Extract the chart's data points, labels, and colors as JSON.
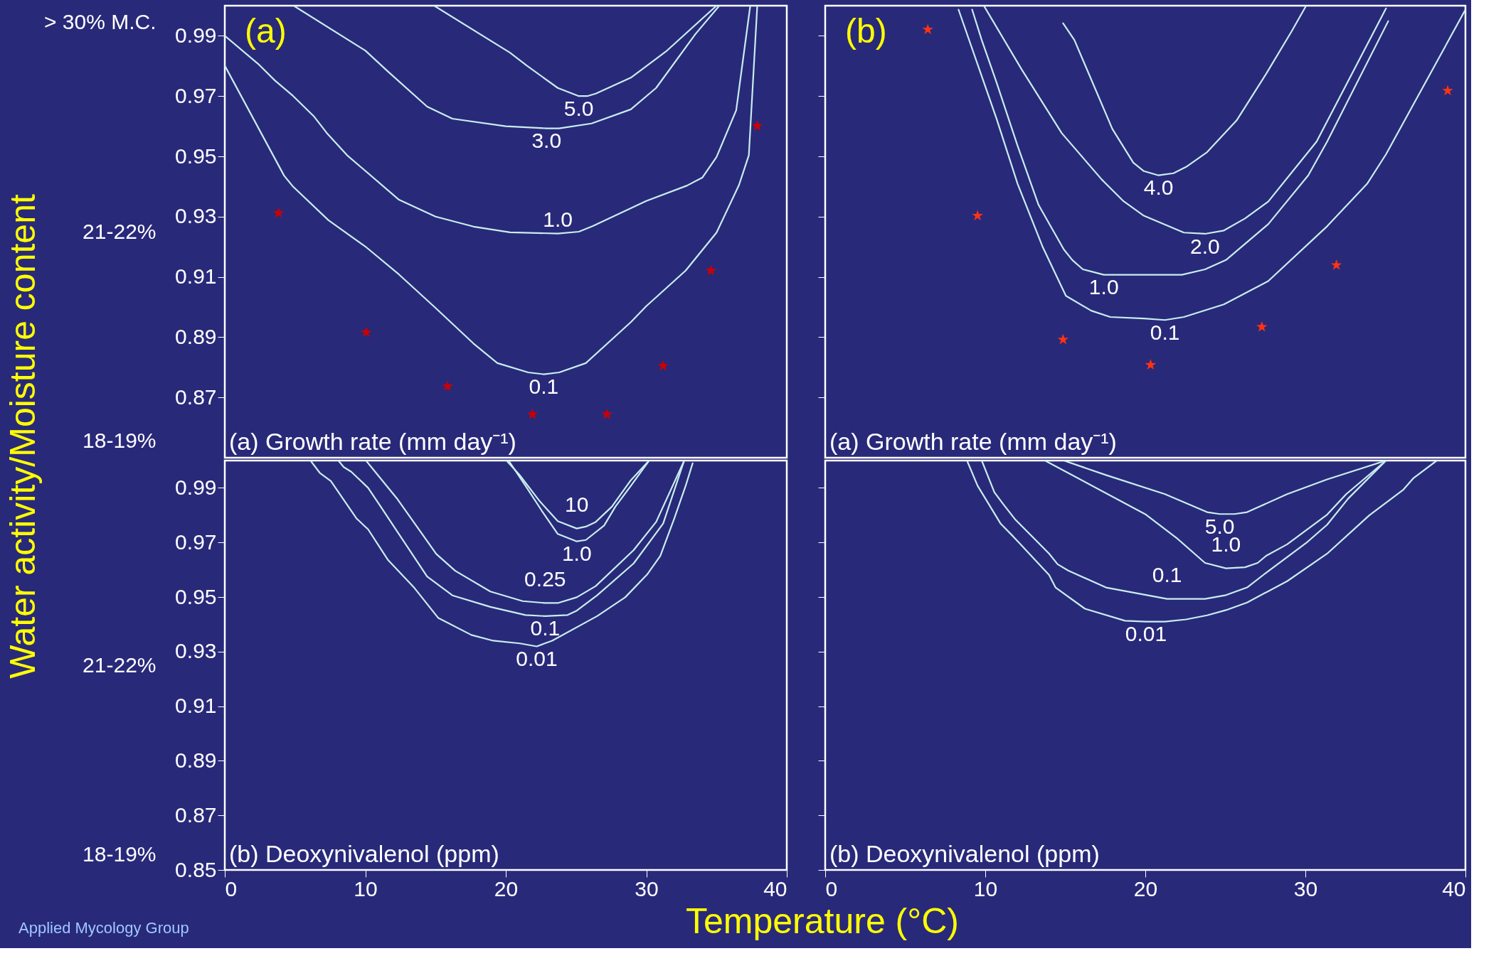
{
  "chart_data": [
    {
      "type": "line",
      "title": "(a)",
      "subtitle": "(a) Growth rate (mm day⁻¹)",
      "ylabel": "Water activity/Moisture content",
      "xlim": [
        0,
        40
      ],
      "ylim": [
        0.85,
        1.0
      ],
      "yticks": [
        0.99,
        0.97,
        0.95,
        0.93,
        0.91,
        0.89,
        0.87
      ],
      "y2_categories": [
        "> 30% M.C.",
        "21-22%",
        "18-19%"
      ],
      "tick_labels": "y",
      "series": [
        {
          "name": "5.0",
          "color": "#c8eeee",
          "x": [
            14.9,
            20.3,
            21.5,
            23.7,
            25.2,
            25.8,
            26.4,
            28.9,
            31.4,
            35.0
          ],
          "values": [
            1.0,
            0.9844,
            0.9801,
            0.9727,
            0.97,
            0.97,
            0.9708,
            0.9761,
            0.9848,
            1.0
          ]
        },
        {
          "name": "3.0",
          "color": "#c8eeee",
          "x": [
            4.9,
            10.0,
            11.6,
            14.4,
            16.2,
            20.0,
            22.9,
            23.8,
            26.1,
            28.9,
            30.7,
            33.5,
            35.2
          ],
          "values": [
            1.0,
            0.9851,
            0.9782,
            0.9665,
            0.9625,
            0.96,
            0.9593,
            0.9593,
            0.9609,
            0.9656,
            0.9727,
            0.9906,
            1.0
          ]
        },
        {
          "name": "1.0",
          "color": "#c8eeee",
          "x": [
            0,
            2.37,
            3.56,
            4.87,
            6.32,
            7.25,
            8.7,
            12.4,
            15.0,
            17.7,
            20.3,
            23.7,
            25.2,
            26.2,
            30.0,
            32.9,
            34.0,
            35.0,
            36.4,
            37.4
          ],
          "values": [
            0.99,
            0.9807,
            0.9752,
            0.97,
            0.9634,
            0.9578,
            0.9504,
            0.9356,
            0.93,
            0.9267,
            0.9248,
            0.9244,
            0.925,
            0.9269,
            0.9352,
            0.9403,
            0.943,
            0.9498,
            0.9653,
            1.0
          ]
        },
        {
          "name": "0.1",
          "color": "#c8eeee",
          "x": [
            0,
            4.22,
            4.87,
            7.38,
            10.0,
            12.4,
            15.0,
            17.7,
            19.4,
            21.6,
            22.7,
            23.8,
            25.7,
            28.9,
            30.0,
            32.8,
            35.0,
            36.6,
            37.3,
            37.9
          ],
          "values": [
            0.9801,
            0.9436,
            0.9399,
            0.9288,
            0.9201,
            0.9108,
            0.8997,
            0.8879,
            0.8814,
            0.8783,
            0.8777,
            0.8783,
            0.8814,
            0.895,
            0.9003,
            0.9121,
            0.9247,
            0.9405,
            0.9504,
            1.0
          ]
        },
        {
          "type": "scatter",
          "marker": "star",
          "color": "#cc0000",
          "x": [
            3.82,
            10.07,
            15.86,
            21.9,
            27.2,
            31.2,
            34.6,
            37.9
          ],
          "values": [
            0.9312,
            0.8916,
            0.8737,
            0.8644,
            0.8644,
            0.8805,
            0.9121,
            0.9601
          ]
        }
      ]
    },
    {
      "type": "line",
      "title": "(b)",
      "subtitle": "(a) Growth rate (mm day⁻¹)",
      "xlim": [
        0,
        40
      ],
      "ylim": [
        0.85,
        1.0
      ],
      "yticks": [
        {
          "value": 0.99,
          "label": null
        },
        {
          "value": 0.97,
          "label": null
        },
        {
          "value": 0.95,
          "label": null
        },
        {
          "value": 0.93,
          "label": null
        },
        {
          "value": 0.91,
          "label": null
        },
        {
          "value": 0.89,
          "label": null
        },
        {
          "value": 0.87,
          "label": null
        }
      ],
      "tick_labels": false,
      "series": [
        {
          "name": "4.0",
          "color": "#c8eeee",
          "x": [
            14.86,
            15.57,
            17.94,
            19.25,
            19.91,
            20.83,
            21.76,
            22.55,
            23.86,
            25.7,
            27.55,
            29.13,
            30.05
          ],
          "values": [
            0.9942,
            0.9886,
            0.9591,
            0.9479,
            0.9451,
            0.9437,
            0.9444,
            0.9465,
            0.9514,
            0.9619,
            0.9774,
            0.9914,
            1.0
          ]
        },
        {
          "name": "2.0",
          "color": "#c8eeee",
          "x": [
            9.91,
            12.28,
            14.78,
            17.28,
            18.6,
            19.91,
            22.41,
            23.73,
            24.91,
            26.23,
            27.68,
            30.7,
            35.04
          ],
          "values": [
            1.0,
            0.9788,
            0.9577,
            0.9423,
            0.9353,
            0.9303,
            0.9247,
            0.9243,
            0.9254,
            0.9294,
            0.935,
            0.9549,
            0.9991
          ]
        },
        {
          "name": "1.0",
          "color": "#c8eeee",
          "x": [
            9.18,
            9.78,
            10.7,
            12.02,
            13.33,
            14.91,
            15.44,
            16.1,
            17.41,
            22.28,
            23.73,
            25.04,
            27.68,
            30.18,
            31.36,
            35.18
          ],
          "values": [
            0.9987,
            0.9886,
            0.9746,
            0.9535,
            0.9339,
            0.9191,
            0.9156,
            0.9125,
            0.9107,
            0.9107,
            0.9125,
            0.9156,
            0.9275,
            0.9437,
            0.9549,
            0.9949
          ]
        },
        {
          "name": "0.1",
          "color": "#c8eeee",
          "x": [
            8.33,
            9.91,
            10.7,
            12.02,
            13.6,
            15.04,
            16.62,
            17.81,
            19.91,
            21.23,
            22.41,
            24.91,
            27.68,
            31.36,
            33.86,
            35.04,
            40.0
          ],
          "values": [
            0.9987,
            0.9746,
            0.9626,
            0.9409,
            0.9198,
            0.9037,
            0.8988,
            0.8967,
            0.8962,
            0.8957,
            0.8967,
            0.9009,
            0.9086,
            0.9268,
            0.9409,
            0.9507,
            0.9987
          ]
        },
        {
          "type": "scatter",
          "marker": "star",
          "color": "#ff3311",
          "x": [
            6.41,
            9.52,
            14.86,
            20.33,
            27.28,
            31.94,
            38.89
          ],
          "values": [
            0.9921,
            0.9303,
            0.8892,
            0.8808,
            0.8934,
            0.9139,
            0.9718
          ]
        }
      ]
    },
    {
      "type": "line",
      "subtitle": "(b) Deoxynivalenol (ppm)",
      "xlabel": "Temperature (°C)",
      "xlim": [
        0,
        40
      ],
      "xticks": [
        0,
        10,
        20,
        30,
        40
      ],
      "ylim": [
        0.85,
        1.0
      ],
      "yticks": [
        0.99,
        0.97,
        0.95,
        0.93,
        0.91,
        0.89,
        0.87,
        0.85
      ],
      "y2_categories": [
        null,
        "21-22%",
        "18-19%"
      ],
      "series": [
        {
          "name": "10",
          "color": "#c8eeee",
          "x": [
            20.05,
            20.97,
            22.4,
            23.7,
            25.05,
            25.7,
            26.4,
            27.55,
            28.9,
            30.2
          ],
          "values": [
            1.0,
            0.9948,
            0.9852,
            0.9778,
            0.9751,
            0.9758,
            0.9775,
            0.9831,
            0.9928,
            1.0
          ]
        },
        {
          "name": "1.0",
          "color": "#c8eeee",
          "x": [
            20.2,
            21.5,
            22.55,
            23.7,
            25.05,
            25.7,
            27.0,
            27.8,
            28.9,
            30.2
          ],
          "values": [
            1.0,
            0.99,
            0.9817,
            0.9731,
            0.9704,
            0.9709,
            0.9762,
            0.9831,
            0.9907,
            1.0
          ]
        },
        {
          "name": "0.25",
          "color": "#c8eeee",
          "x": [
            10.05,
            12.3,
            15.05,
            16.4,
            18.9,
            21.2,
            22.8,
            23.7,
            25.05,
            26.4,
            29.1,
            30.7,
            32.7
          ],
          "values": [
            1.0,
            0.9858,
            0.9658,
            0.9596,
            0.952,
            0.9485,
            0.9478,
            0.9478,
            0.9499,
            0.954,
            0.9672,
            0.9775,
            1.0
          ]
        },
        {
          "name": "0.1",
          "color": "#c8eeee",
          "x": [
            8.08,
            8.47,
            9.0,
            10.2,
            11.1,
            14.4,
            16.2,
            18.9,
            21.4,
            22.8,
            24.4,
            25.05,
            26.5,
            29.1,
            31.2,
            32.7
          ],
          "values": [
            1.0,
            0.9976,
            0.9959,
            0.99,
            0.9831,
            0.9575,
            0.9506,
            0.9464,
            0.9434,
            0.943,
            0.9434,
            0.945,
            0.9506,
            0.9623,
            0.9769,
            1.0
          ]
        },
        {
          "name": "0.01",
          "color": "#c8eeee",
          "x": [
            6.1,
            6.76,
            7.55,
            9.39,
            10.2,
            11.6,
            13.5,
            15.2,
            17.55,
            19.1,
            21.0,
            22.2,
            23.3,
            26.5,
            28.5,
            30.05,
            31.0,
            32.0,
            32.8,
            33.3
          ],
          "values": [
            1.0,
            0.9955,
            0.9925,
            0.9787,
            0.9748,
            0.9637,
            0.9533,
            0.9423,
            0.9361,
            0.934,
            0.933,
            0.9319,
            0.934,
            0.943,
            0.9499,
            0.9582,
            0.9651,
            0.9789,
            0.9907,
            0.999
          ]
        }
      ],
      "annotations": [
        "Applied Mycology Group"
      ]
    },
    {
      "type": "line",
      "subtitle": "(b) Deoxynivalenol (ppm)",
      "xlim": [
        0,
        40
      ],
      "xticks": [
        0,
        10,
        20,
        30,
        40
      ],
      "ylim": [
        0.85,
        1.0
      ],
      "yticks": [
        {
          "value": 0.99,
          "label": null
        },
        {
          "value": 0.97,
          "label": null
        },
        {
          "value": 0.95,
          "label": null
        },
        {
          "value": 0.93,
          "label": null
        },
        {
          "value": 0.91,
          "label": null
        },
        {
          "value": 0.89,
          "label": null
        },
        {
          "value": 0.87,
          "label": null
        },
        {
          "value": 0.85,
          "label": null
        }
      ],
      "tick_labels": "x",
      "series": [
        {
          "name": "5.0",
          "color": "#c8eeee",
          "x": [
            14.91,
            17.54,
            21.23,
            23.86,
            24.65,
            25.57,
            26.36,
            28.86,
            31.36,
            35.04
          ],
          "values": [
            1.0,
            0.9947,
            0.9877,
            0.9811,
            0.9804,
            0.9804,
            0.9811,
            0.9877,
            0.9931,
            1.0
          ]
        },
        {
          "name": "1.0",
          "color": "#c8eeee",
          "x": [
            13.73,
            20.04,
            22.02,
            23.73,
            25.04,
            26.23,
            27.02,
            27.55,
            28.86,
            31.36,
            32.55,
            35.04
          ],
          "values": [
            1.0,
            0.9802,
            0.9713,
            0.9625,
            0.9605,
            0.9609,
            0.9625,
            0.9651,
            0.9693,
            0.9802,
            0.9877,
            1.0
          ]
        },
        {
          "name": "0.1",
          "color": "#c8eeee",
          "x": [
            9.78,
            10.57,
            11.1,
            11.89,
            13.99,
            14.52,
            15.18,
            17.54,
            21.36,
            23.73,
            25.04,
            26.36,
            27.55,
            30.05,
            31.36,
            32.68,
            35.04
          ],
          "values": [
            1.0,
            0.9884,
            0.9842,
            0.9783,
            0.9659,
            0.962,
            0.9597,
            0.9535,
            0.9493,
            0.9493,
            0.9507,
            0.9535,
            0.9589,
            0.9698,
            0.9765,
            0.9861,
            1.0
          ]
        },
        {
          "name": "0.01",
          "color": "#c8eeee",
          "x": [
            8.86,
            9.52,
            10.97,
            11.76,
            13.99,
            14.39,
            16.23,
            18.73,
            20.04,
            21.23,
            22.55,
            23.86,
            25.04,
            26.36,
            28.86,
            31.36,
            33.99,
            36.1,
            36.76,
            38.21
          ],
          "values": [
            1.0,
            0.9908,
            0.9768,
            0.9721,
            0.9581,
            0.9535,
            0.9457,
            0.9413,
            0.941,
            0.941,
            0.9418,
            0.9433,
            0.9452,
            0.948,
            0.9558,
            0.9659,
            0.9799,
            0.9892,
            0.9936,
            1.0
          ]
        }
      ]
    }
  ]
}
